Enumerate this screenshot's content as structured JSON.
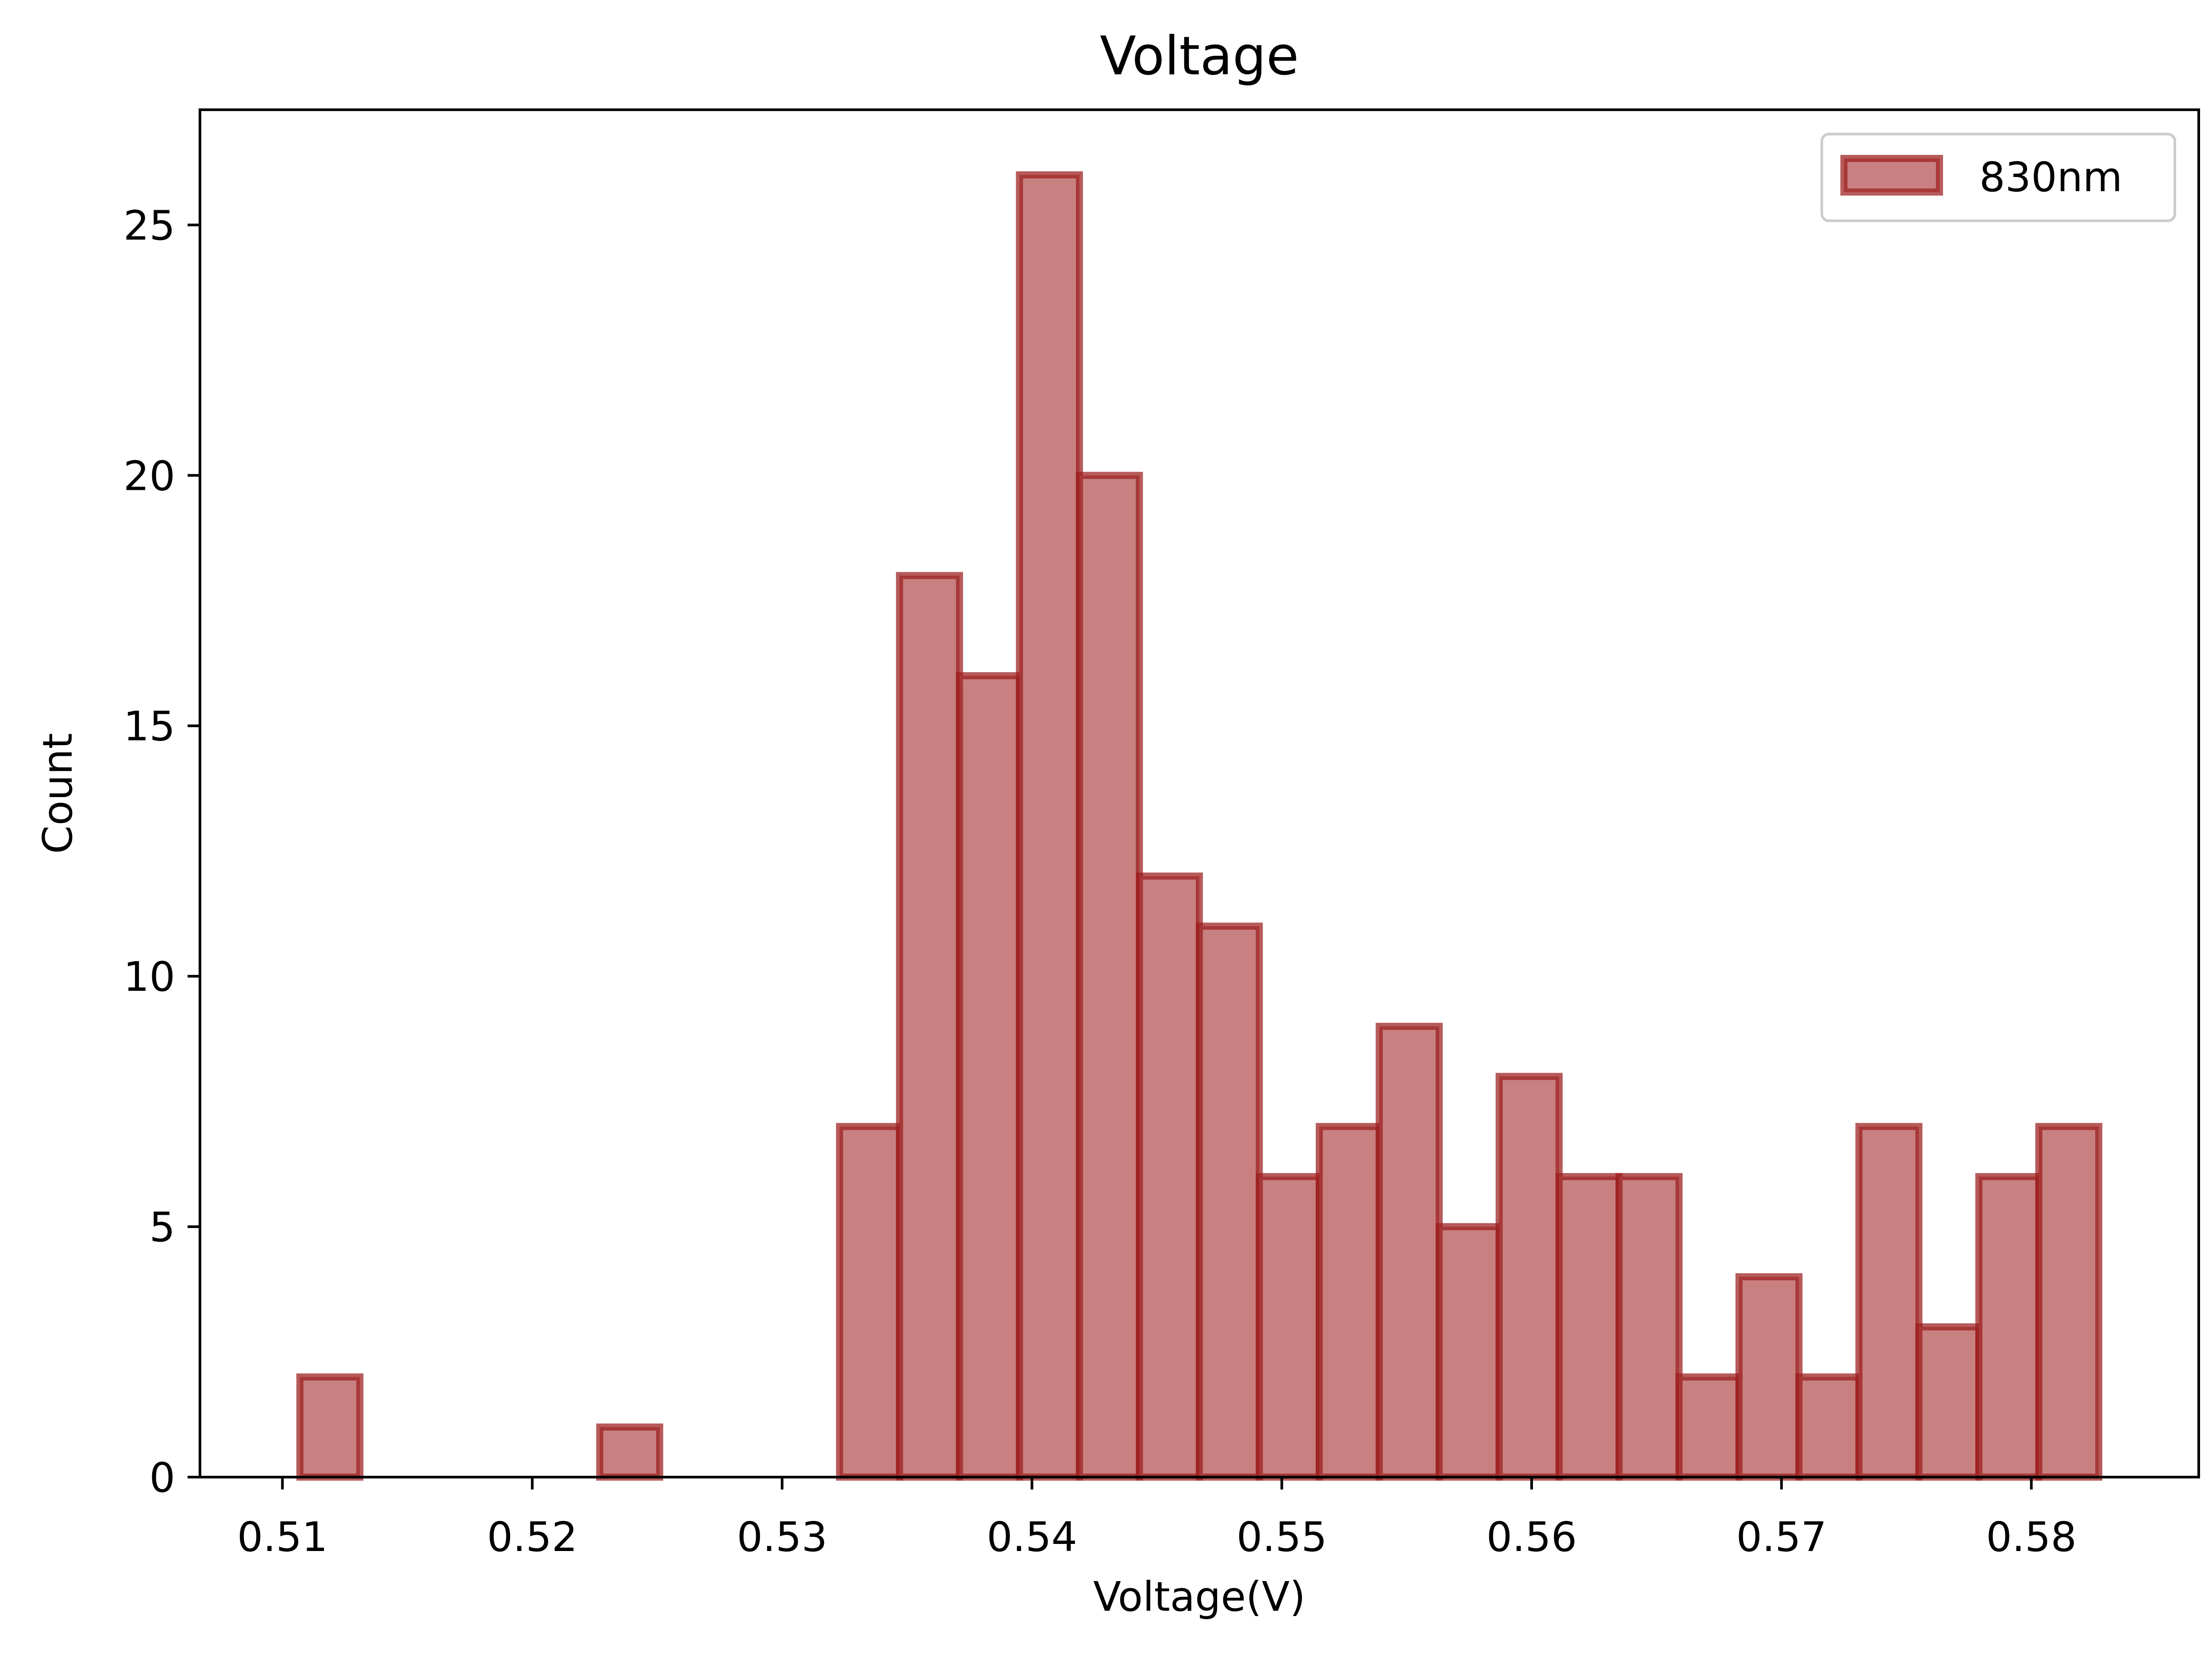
{
  "chart_data": {
    "type": "bar",
    "title": "Voltage",
    "xlabel": "Voltage(V)",
    "ylabel": "Count",
    "xlim": [
      0.5067,
      0.5867
    ],
    "ylim": [
      0,
      27.3
    ],
    "xticks": [
      {
        "value": 0.51,
        "label": "0.51"
      },
      {
        "value": 0.52,
        "label": "0.52"
      },
      {
        "value": 0.53,
        "label": "0.53"
      },
      {
        "value": 0.54,
        "label": "0.54"
      },
      {
        "value": 0.55,
        "label": "0.55"
      },
      {
        "value": 0.56,
        "label": "0.56"
      },
      {
        "value": 0.57,
        "label": "0.57"
      },
      {
        "value": 0.58,
        "label": "0.58"
      }
    ],
    "yticks": [
      {
        "value": 0,
        "label": "0"
      },
      {
        "value": 5,
        "label": "5"
      },
      {
        "value": 10,
        "label": "10"
      },
      {
        "value": 15,
        "label": "15"
      },
      {
        "value": 20,
        "label": "20"
      },
      {
        "value": 25,
        "label": "25"
      }
    ],
    "grid": false,
    "legend": {
      "position": "top-right",
      "entries": [
        "830nm"
      ]
    },
    "series": [
      {
        "name": "830nm",
        "fill_color": "#c98080",
        "edge_color": "#9b1c1c",
        "bin_edges": [
          0.5107,
          0.5131,
          0.5155,
          0.5179,
          0.5203,
          0.5227,
          0.5251,
          0.5275,
          0.5299,
          0.5323,
          0.5347,
          0.5371,
          0.5395,
          0.5419,
          0.5443,
          0.5467,
          0.5491,
          0.5515,
          0.5539,
          0.5563,
          0.5587,
          0.5611,
          0.5635,
          0.5659,
          0.5683,
          0.5707,
          0.5731,
          0.5755,
          0.5779,
          0.5803,
          0.5827
        ],
        "counts": [
          2,
          0,
          0,
          0,
          0,
          1,
          0,
          0,
          0,
          7,
          18,
          16,
          26,
          20,
          12,
          11,
          6,
          7,
          9,
          5,
          8,
          6,
          6,
          2,
          4,
          2,
          7,
          3,
          6,
          7
        ]
      }
    ]
  }
}
